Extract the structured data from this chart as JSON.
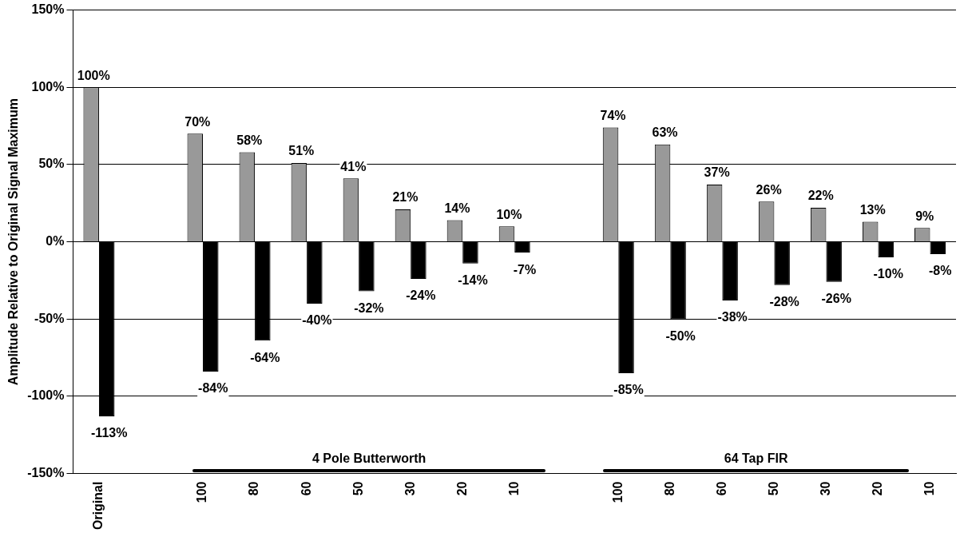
{
  "chart_data": {
    "type": "bar",
    "ylabel": "Amplitude Relative to Original Signal Maximum",
    "categories": [
      "Original",
      null,
      "100",
      "80",
      "60",
      "50",
      "30",
      "20",
      "10",
      null,
      "100",
      "80",
      "60",
      "50",
      "30",
      "20",
      "10"
    ],
    "series": [
      {
        "color": "#999999",
        "values": [
          100,
          null,
          70,
          58,
          51,
          41,
          21,
          14,
          10,
          null,
          74,
          63,
          37,
          26,
          22,
          13,
          9
        ],
        "value_labels": [
          "100%",
          null,
          "70%",
          "58%",
          "51%",
          "41%",
          "21%",
          "14%",
          "10%",
          null,
          "74%",
          "63%",
          "37%",
          "26%",
          "22%",
          "13%",
          "9%"
        ]
      },
      {
        "color": "#000000",
        "values": [
          -113,
          null,
          -84,
          -64,
          -40,
          -32,
          -24,
          -14,
          -7,
          null,
          -85,
          -50,
          -38,
          -28,
          -26,
          -10,
          -8
        ],
        "value_labels": [
          "-113%",
          null,
          "-84%",
          "-64%",
          "-40%",
          "-32%",
          "-24%",
          "-14%",
          "-7%",
          null,
          "-85%",
          "-50%",
          "-38%",
          "-28%",
          "-26%",
          "-10%",
          "-8%"
        ]
      }
    ],
    "ylim": [
      -150,
      150
    ],
    "yticks": [
      {
        "value": -150,
        "label": "-150%"
      },
      {
        "value": -100,
        "label": "-100%"
      },
      {
        "value": -50,
        "label": "-50%"
      },
      {
        "value": 0,
        "label": "0%"
      },
      {
        "value": 50,
        "label": "50%"
      },
      {
        "value": 100,
        "label": "100%"
      },
      {
        "value": 150,
        "label": "150%"
      }
    ],
    "annotations": [
      "4 Pole Butterworth",
      "64 Tap FIR"
    ],
    "grid": "y",
    "legend": false
  }
}
